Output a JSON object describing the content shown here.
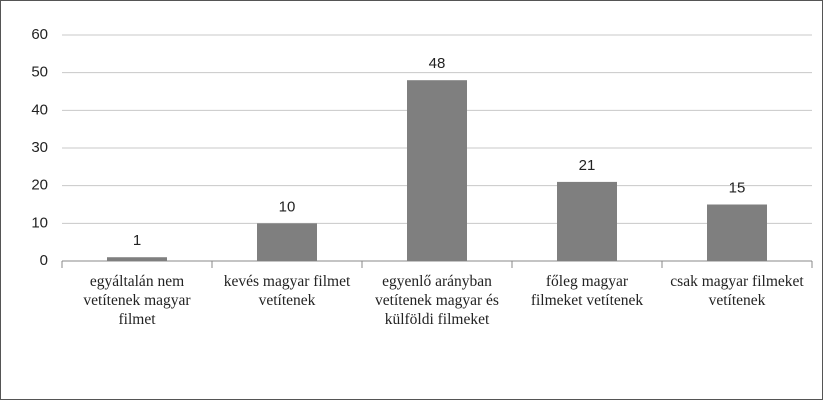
{
  "chart_data": {
    "type": "bar",
    "categories": [
      "egyáltalán nem vetítenek magyar filmet",
      "kevés magyar filmet vetítenek",
      "egyenlő arányban vetítenek magyar és külföldi filmeket",
      "főleg magyar filmeket vetítenek",
      "csak magyar filmeket vetítenek"
    ],
    "values": [
      1,
      10,
      48,
      21,
      15
    ],
    "color": "#7f7f7f",
    "ylim": [
      0,
      60
    ],
    "yticks": [
      0,
      10,
      20,
      30,
      40,
      50,
      60
    ],
    "grid": true
  }
}
